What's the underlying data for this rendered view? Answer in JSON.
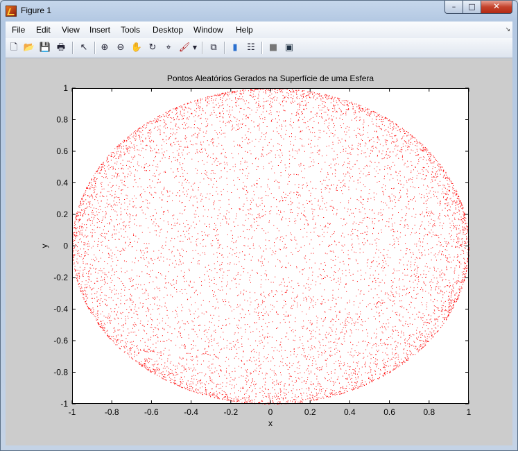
{
  "window": {
    "title": "Figure 1",
    "controls": {
      "minimize": "–",
      "maximize": "□",
      "close": "✕"
    }
  },
  "menu": [
    {
      "label": "File"
    },
    {
      "label": "Edit"
    },
    {
      "label": "View"
    },
    {
      "label": "Insert"
    },
    {
      "label": "Tools"
    },
    {
      "label": "Desktop"
    },
    {
      "label": "Window"
    },
    {
      "label": "Help"
    }
  ],
  "toolbar": {
    "icons": [
      "new-figure-icon",
      "open-file-icon",
      "save-icon",
      "print-icon",
      "edit-plot-arrow-icon",
      "zoom-in-icon",
      "zoom-out-icon",
      "pan-hand-icon",
      "rotate-3d-icon",
      "data-cursor-icon",
      "brush-icon",
      "dropdown-arrow-icon",
      "link-plot-icon",
      "insert-colorbar-icon",
      "insert-legend-icon",
      "hide-plot-tools-icon",
      "show-plot-tools-icon"
    ]
  },
  "chart_data": {
    "type": "scatter",
    "title": "Pontos Aleatórios Gerados na Superfície de uma Esfera",
    "xlabel": "x",
    "ylabel": "y",
    "xlim": [
      -1,
      1
    ],
    "ylim": [
      -1,
      1
    ],
    "xticks": [
      "-1",
      "-0.8",
      "-0.6",
      "-0.4",
      "-0.2",
      "0",
      "0.2",
      "0.4",
      "0.6",
      "0.8",
      "1"
    ],
    "yticks": [
      "1",
      "0.8",
      "0.6",
      "0.4",
      "0.2",
      "0",
      "-0.2",
      "-0.4",
      "-0.6",
      "-0.8",
      "-1"
    ],
    "series": [
      {
        "marker": "dot",
        "color": "#ff0000",
        "distribution": "projection of uniform random points on unit sphere surface",
        "radius": 1
      }
    ],
    "grid": false,
    "legend": "none",
    "background": "#ffffff",
    "figure_color": "#cccccc"
  }
}
